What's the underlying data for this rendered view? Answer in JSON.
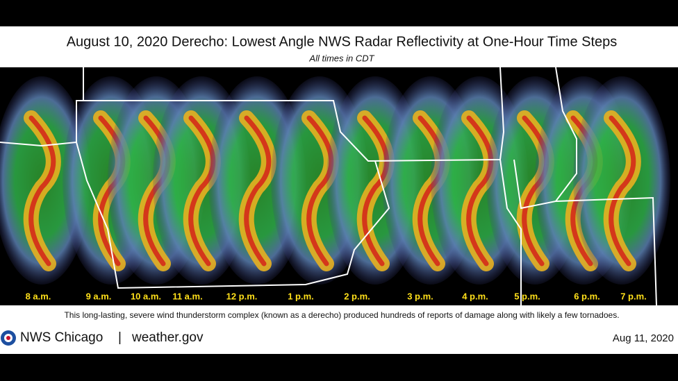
{
  "header": {
    "title": "August 10, 2020 Derecho:  Lowest Angle NWS Radar Reflectivity at One-Hour Time Steps",
    "subtitle": "All times in CDT"
  },
  "times": [
    "8 a.m.",
    "9 a.m.",
    "10 a.m.",
    "11 a.m.",
    "12 p.m.",
    "1 p.m.",
    "2 p.m.",
    "3 p.m.",
    "4 p.m.",
    "5 p.m.",
    "6 p.m.",
    "7 p.m."
  ],
  "caption": "This long-lasting, severe wind thunderstorm complex (known as a derecho) produced hundreds of reports of damage along with likely a few tornadoes.",
  "footer": {
    "source": "NWS Chicago",
    "separator": "|",
    "site": "weather.gov",
    "date": "Aug 11, 2020"
  }
}
